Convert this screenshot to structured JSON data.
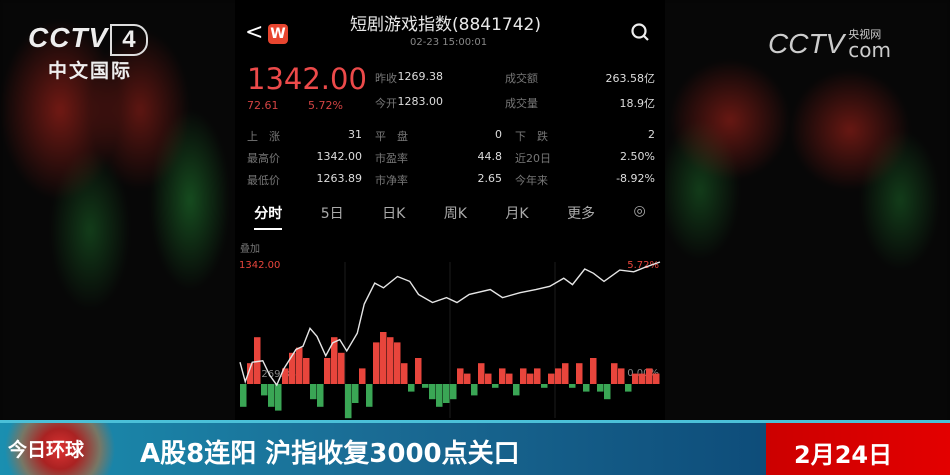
{
  "channel_logo": {
    "brand": "CCTV",
    "number": "4",
    "name": "中文国际"
  },
  "web_logo": {
    "brand": "CCTV",
    "cn": "央视网",
    "suffix": "com"
  },
  "app": {
    "title": "短剧游戏指数(8841742)",
    "timestamp": "02-23 15:00:01",
    "badge": "W",
    "price": "1342.00",
    "change": "72.61",
    "change_pct": "5.72%",
    "stats": [
      [
        {
          "label": "昨收",
          "value": "1269.38"
        },
        {
          "label": "成交额",
          "value": "263.58亿"
        }
      ],
      [
        {
          "label": "今开",
          "value": "1283.00"
        },
        {
          "label": "成交量",
          "value": "18.9亿"
        }
      ]
    ],
    "grid": [
      [
        {
          "label": "上　涨",
          "value": "31"
        },
        {
          "label": "平　盘",
          "value": "0"
        },
        {
          "label": "下　跌",
          "value": "2"
        }
      ],
      [
        {
          "label": "最高价",
          "value": "1342.00"
        },
        {
          "label": "市盈率",
          "value": "44.8"
        },
        {
          "label": "近20日",
          "value": "2.50%"
        }
      ],
      [
        {
          "label": "最低价",
          "value": "1263.89"
        },
        {
          "label": "市净率",
          "value": "2.65"
        },
        {
          "label": "今年来",
          "value": "-8.92%"
        }
      ]
    ],
    "tabs": [
      "分时",
      "5日",
      "日K",
      "周K",
      "月K",
      "更多"
    ],
    "active_tab": "分时",
    "overlay_label": "叠加",
    "colors": {
      "up": "#e8453c",
      "down": "#3aa655",
      "line": "#e6e6e6"
    }
  },
  "chart_data": {
    "type": "line",
    "y_top_label": "1342.00",
    "y_base_label": "1269.38",
    "right_top_label": "5.72%",
    "right_base_label": "0.00%",
    "x": [
      0,
      3,
      7,
      13,
      17,
      21,
      25,
      32,
      36,
      40,
      44,
      49,
      53,
      57,
      61,
      67,
      71,
      77,
      82,
      90,
      97,
      102,
      110,
      118,
      124,
      131,
      143,
      150,
      160,
      169,
      177,
      185,
      190,
      197,
      202,
      208,
      217,
      225,
      232,
      240
    ],
    "pct": [
      1.02,
      0.11,
      1.02,
      1.09,
      0.41,
      -0.05,
      0.71,
      1.62,
      1.77,
      2.61,
      2.23,
      1.32,
      1.93,
      2.08,
      1.55,
      2.38,
      3.75,
      4.73,
      4.51,
      5.04,
      4.81,
      4.2,
      3.82,
      4.05,
      3.82,
      4.2,
      4.43,
      4.05,
      4.28,
      4.43,
      4.58,
      4.96,
      4.66,
      5.39,
      5.19,
      4.81,
      5.34,
      5.26,
      5.49,
      5.72
    ],
    "ylim_pct": [
      0,
      5.72
    ],
    "bars": [
      -6,
      4,
      9,
      -3,
      -6,
      -7,
      3,
      6,
      7,
      5,
      -4,
      -6,
      5,
      9,
      6,
      -9,
      -5,
      3,
      -6,
      8,
      10,
      9,
      8,
      4,
      -2,
      5,
      -1,
      -4,
      -6,
      -5,
      -4,
      3,
      2,
      -3,
      4,
      2,
      -1,
      3,
      2,
      -3,
      3,
      2,
      3,
      -1,
      2,
      3,
      4,
      -1,
      4,
      -2,
      5,
      -2,
      -4,
      4,
      3,
      -2,
      2,
      2,
      3,
      2
    ]
  },
  "ticker": {
    "program": "今日环球",
    "headline": "A股8连阳 沪指收复3000点关口",
    "date": "2月24日"
  }
}
